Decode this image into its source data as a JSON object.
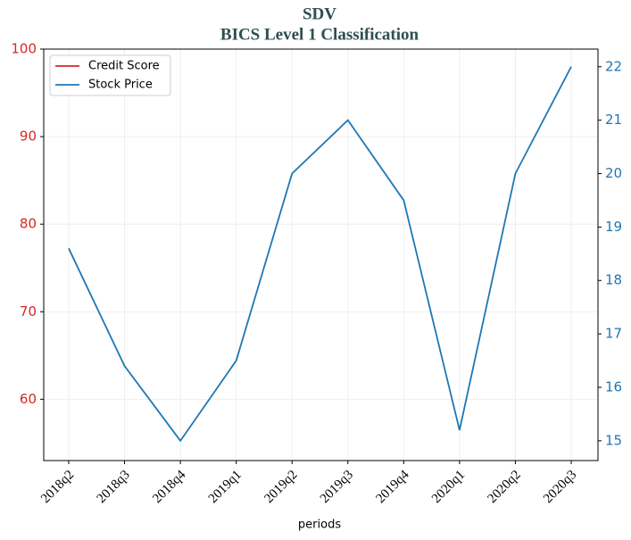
{
  "chart_data": {
    "type": "line",
    "title": "SDV",
    "subtitle": "BICS Level 1 Classification",
    "xlabel": "periods",
    "categories": [
      "2018q2",
      "2018q3",
      "2018q4",
      "2019q1",
      "2019q2",
      "2019q3",
      "2019q4",
      "2020q1",
      "2020q2",
      "2020q3"
    ],
    "series": [
      {
        "name": "Credit Score",
        "color": "#d62728",
        "values": [
          null,
          null,
          null,
          null,
          null,
          null,
          null,
          null,
          null,
          null
        ]
      },
      {
        "name": "Stock Price",
        "color": "#1f77b4",
        "axis": "y2",
        "values": [
          18.6,
          16.4,
          15.0,
          16.5,
          20.0,
          21.0,
          19.5,
          15.2,
          20.0,
          22.0
        ]
      }
    ],
    "ylim": [
      53,
      100
    ],
    "yticks": [
      60,
      70,
      80,
      90,
      100
    ],
    "y2lim": [
      14.63,
      22.33
    ],
    "y2ticks": [
      15,
      16,
      17,
      18,
      19,
      20,
      21,
      22
    ],
    "grid": true,
    "legend": "upper left"
  }
}
